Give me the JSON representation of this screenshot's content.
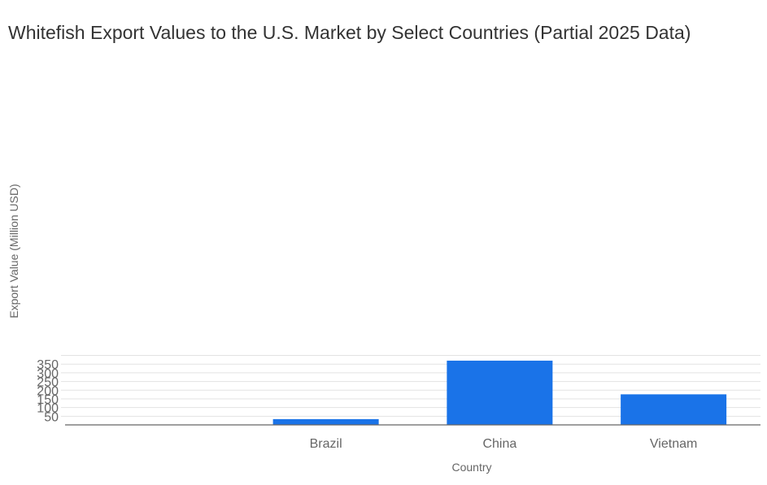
{
  "chart_data": {
    "type": "bar",
    "title": "Whitefish Export Values to the U.S. Market by Select Countries (Partial 2025 Data)",
    "xlabel": "Country",
    "ylabel": "Export Value (Million USD)",
    "categories": [
      "",
      "Brazil",
      "China",
      "Vietnam"
    ],
    "values": [
      0,
      33,
      370,
      176
    ],
    "ylim": [
      0,
      400
    ],
    "yticks": [
      50,
      100,
      150,
      200,
      250,
      300,
      350
    ],
    "grid": true,
    "legend": "none",
    "bar_color": "#1a73e8"
  }
}
